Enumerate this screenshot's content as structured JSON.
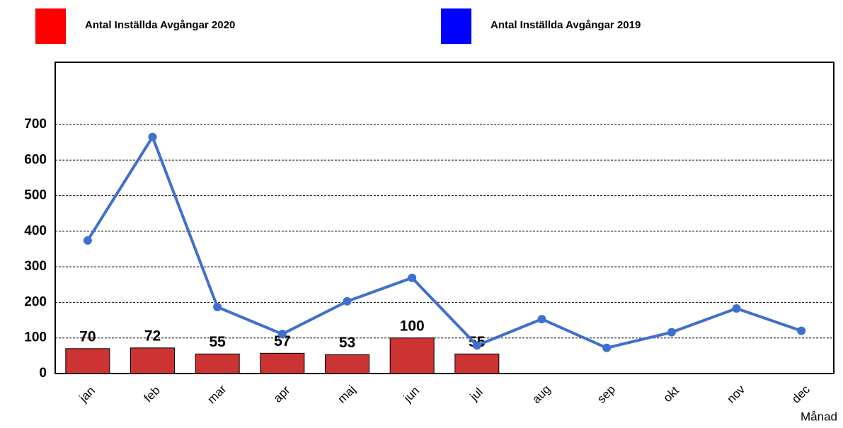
{
  "chart_data": {
    "type": "bar",
    "x_label": "Månad",
    "categories": [
      "jan",
      "feb",
      "mar",
      "apr",
      "maj",
      "jun",
      "jul",
      "aug",
      "sep",
      "okt",
      "nov",
      "dec"
    ],
    "series": [
      {
        "name": "Antal Inställda Avgångar 2020",
        "type": "bar",
        "color": "#cc3333",
        "legend_color": "#ff0000",
        "values": [
          70,
          72,
          55,
          57,
          53,
          100,
          55,
          null,
          null,
          null,
          null,
          null
        ]
      },
      {
        "name": "Antal Inställda Avgångar 2019",
        "type": "line",
        "color": "#3f6fcf",
        "legend_color": "#0000ff",
        "values": [
          374,
          665,
          187,
          111,
          203,
          269,
          79,
          153,
          72,
          116,
          183,
          120
        ]
      }
    ],
    "ylim": [
      0,
      875
    ],
    "yticks": [
      0,
      100,
      200,
      300,
      400,
      500,
      600,
      700
    ],
    "grid": true
  }
}
